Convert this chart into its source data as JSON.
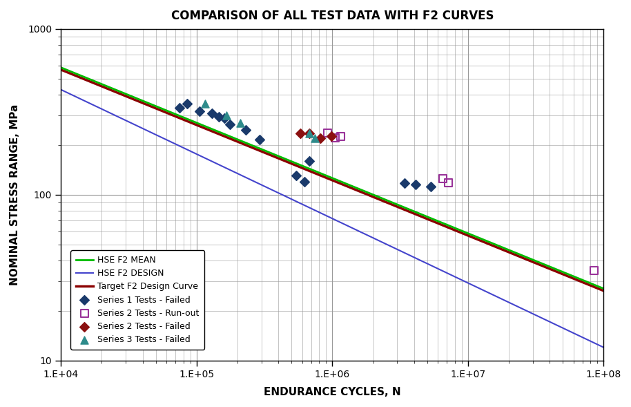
{
  "title": "COMPARISON OF ALL TEST DATA WITH F2 CURVES",
  "xlabel": "ENDURANCE CYCLES, N",
  "ylabel": "NOMINAL STRESS RANGE, MPa",
  "xlim": [
    10000,
    100000000
  ],
  "ylim": [
    10,
    1000
  ],
  "hse_f2_mean": {
    "S_ref": 100,
    "N_ref": 2000000,
    "slope": 3,
    "color": "#00BB00",
    "lw": 2.0,
    "label": "HSE F2 MEAN"
  },
  "hse_f2_design": {
    "S_at_1e4": 430,
    "S_at_1e8": 12,
    "color": "#4444CC",
    "lw": 1.5,
    "label": "HSE F2 DESIGN"
  },
  "target_f2": {
    "S_ref": 97,
    "N_ref": 2000000,
    "slope": 3,
    "color": "#8B0000",
    "lw": 2.5,
    "label": "Target F2 Design Curve"
  },
  "series1_failed": {
    "x": [
      75000,
      85000,
      105000,
      130000,
      145000,
      160000,
      175000,
      230000,
      290000,
      540000,
      620000,
      680000,
      3400000,
      4100000,
      5300000
    ],
    "y": [
      335,
      355,
      320,
      310,
      295,
      290,
      265,
      245,
      215,
      130,
      120,
      160,
      118,
      115,
      112
    ],
    "color": "#1A3A6B",
    "marker": "D",
    "ms": 7,
    "label": "Series 1 Tests - Failed"
  },
  "series2_runout": {
    "x": [
      920000,
      1050000,
      1150000,
      6500000,
      7200000,
      85000000
    ],
    "y": [
      235,
      220,
      225,
      125,
      118,
      35
    ],
    "edgecolor": "#993399",
    "marker": "s",
    "ms": 8,
    "label": "Series 2 Tests - Run-out"
  },
  "series2_failed": {
    "x": [
      580000,
      680000,
      820000,
      980000
    ],
    "y": [
      235,
      235,
      220,
      225
    ],
    "color": "#8B1010",
    "marker": "D",
    "ms": 7,
    "label": "Series 2 Tests - Failed"
  },
  "series3_failed": {
    "x": [
      115000,
      165000,
      210000,
      680000,
      740000
    ],
    "y": [
      355,
      300,
      270,
      235,
      220
    ],
    "color": "#2E8B8B",
    "marker": "^",
    "ms": 8,
    "label": "Series 3 Tests - Failed"
  },
  "grid_color": "#999999",
  "bg_color": "#FFFFFF",
  "title_fontsize": 12,
  "label_fontsize": 11,
  "tick_fontsize": 10,
  "legend_fontsize": 9
}
